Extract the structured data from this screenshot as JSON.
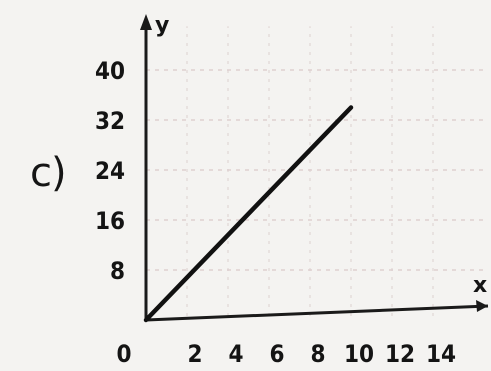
{
  "part_label": "c)",
  "chart_data": {
    "type": "line",
    "title": "",
    "xlabel": "x",
    "ylabel": "y",
    "xlim": [
      0,
      16
    ],
    "ylim": [
      0,
      48
    ],
    "x_ticks": [
      0,
      2,
      4,
      6,
      8,
      10,
      12,
      14
    ],
    "y_ticks": [
      8,
      16,
      24,
      32,
      40
    ],
    "grid": true,
    "series": [
      {
        "x": [
          0,
          10
        ],
        "y": [
          0,
          34
        ]
      }
    ]
  }
}
